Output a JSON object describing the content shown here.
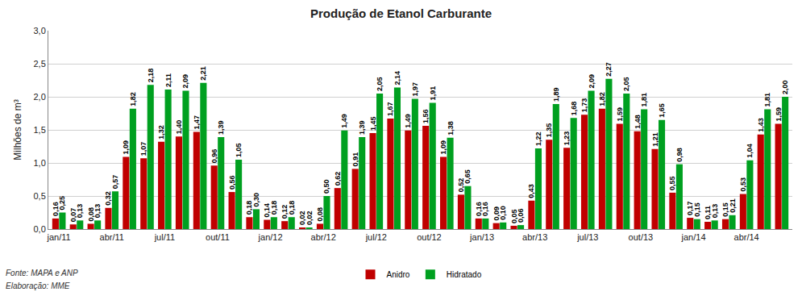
{
  "chart_data": {
    "type": "bar",
    "title": "Produção de Etanol Carburante",
    "y_label": "Milhões de m³",
    "categories": [
      "jan/11",
      null,
      null,
      "abr/11",
      null,
      null,
      "jul/11",
      null,
      null,
      "out/11",
      null,
      null,
      "jan/12",
      null,
      null,
      "abr/12",
      null,
      null,
      "jul/12",
      null,
      null,
      "out/12",
      null,
      null,
      "jan/13",
      null,
      null,
      "abr/13",
      null,
      null,
      "jul/13",
      null,
      null,
      "out/13",
      null,
      null,
      "jan/14",
      null,
      null,
      "abr/14",
      null,
      null
    ],
    "series": [
      {
        "name": "Anidro",
        "color": "#c00000",
        "values": [
          0.16,
          0.07,
          0.08,
          0.32,
          1.09,
          1.07,
          1.32,
          1.4,
          1.47,
          0.96,
          0.56,
          0.18,
          0.14,
          0.12,
          0.02,
          0.08,
          0.62,
          0.91,
          1.45,
          1.67,
          1.49,
          1.56,
          1.09,
          0.52,
          0.16,
          0.09,
          0.05,
          0.43,
          1.35,
          1.23,
          1.73,
          1.82,
          1.59,
          1.48,
          1.21,
          0.55,
          0.17,
          0.11,
          0.15,
          0.53,
          1.43,
          1.59
        ],
        "value_labels": [
          "0,16",
          "0,07",
          "0,08",
          "0,32",
          "1,09",
          "1,07",
          "1,32",
          "1,40",
          "1,47",
          "0,96",
          "0,56",
          "0,18",
          "0,14",
          "0,12",
          "0,02",
          "0,08",
          "0,62",
          "0,91",
          "1,45",
          "1,67",
          "1,49",
          "1,56",
          "1,09",
          "0,52",
          "0,16",
          "0,09",
          "0,05",
          "0,43",
          "1,35",
          "1,23",
          "1,73",
          "1,82",
          "1,59",
          "1,48",
          "1,21",
          "0,55",
          "0,17",
          "0,11",
          "0,15",
          "0,53",
          "1,43",
          "1,59"
        ]
      },
      {
        "name": "Hidratado",
        "color": "#00a020",
        "values": [
          0.25,
          0.13,
          0.13,
          0.57,
          1.82,
          2.18,
          2.11,
          2.09,
          2.21,
          1.39,
          1.05,
          0.3,
          0.18,
          0.18,
          0.02,
          0.5,
          1.49,
          1.39,
          2.05,
          2.14,
          1.97,
          1.91,
          1.38,
          0.65,
          0.16,
          0.1,
          0.06,
          1.22,
          1.89,
          1.68,
          2.09,
          2.27,
          2.05,
          1.81,
          1.65,
          0.98,
          0.15,
          0.13,
          0.21,
          1.04,
          1.81,
          2.0
        ],
        "value_labels": [
          "0,25",
          "0,13",
          "0,13",
          "0,57",
          "1,82",
          "2,18",
          "2,11",
          "2,09",
          "2,21",
          "1,39",
          "1,05",
          "0,30",
          "0,18",
          "0,18",
          "0,02",
          "0,50",
          "1,49",
          "1,39",
          "2,05",
          "2,14",
          "1,97",
          "1,91",
          "1,38",
          "0,65",
          "0,16",
          "0,10",
          "0,06",
          "1,22",
          "1,89",
          "1,68",
          "2,09",
          "2,27",
          "2,05",
          "1,81",
          "1,65",
          "0,98",
          "0,15",
          "0,13",
          "0,21",
          "1,04",
          "1,81",
          "2,00"
        ]
      }
    ],
    "ylim": [
      0,
      3
    ],
    "yticks": [
      {
        "value": 0,
        "label": "0,0"
      },
      {
        "value": 0.5,
        "label": "0,5"
      },
      {
        "value": 1,
        "label": "1,0"
      },
      {
        "value": 1.5,
        "label": "1,5"
      },
      {
        "value": 2,
        "label": "2,0"
      },
      {
        "value": 2.5,
        "label": "2,5"
      },
      {
        "value": 3,
        "label": "3,0"
      }
    ],
    "grid": true,
    "legend": "bottom",
    "data_labels": true,
    "annotations": [
      {
        "text": "Fonte: MAPA e ANP"
      },
      {
        "text": "Elaboração: MME"
      }
    ]
  }
}
